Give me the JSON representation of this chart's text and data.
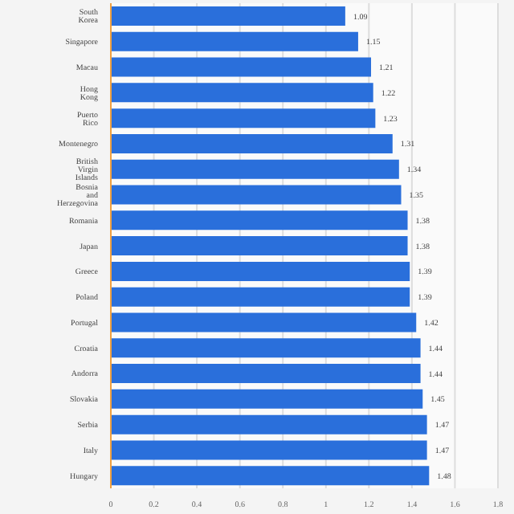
{
  "chart_data": {
    "type": "bar",
    "orientation": "horizontal",
    "categories": [
      "South Korea",
      "Singapore",
      "Macau",
      "Hong Kong",
      "Puerto Rico",
      "Montenegro",
      "British Virgin Islands",
      "Bosnia and Herzegovina",
      "Romania",
      "Japan",
      "Greece",
      "Poland",
      "Portugal",
      "Croatia",
      "Andorra",
      "Slovakia",
      "Serbia",
      "Italy",
      "Hungary"
    ],
    "values": [
      1.09,
      1.15,
      1.21,
      1.22,
      1.23,
      1.31,
      1.34,
      1.35,
      1.38,
      1.38,
      1.39,
      1.39,
      1.42,
      1.44,
      1.44,
      1.45,
      1.47,
      1.47,
      1.48
    ],
    "color": "#2a6fdb",
    "xlim": [
      0,
      1.8
    ],
    "xticks": [
      0,
      0.2,
      0.4,
      0.6,
      0.8,
      1,
      1.2,
      1.4,
      1.6,
      1.8
    ],
    "grid": "x",
    "data_labels": true
  }
}
